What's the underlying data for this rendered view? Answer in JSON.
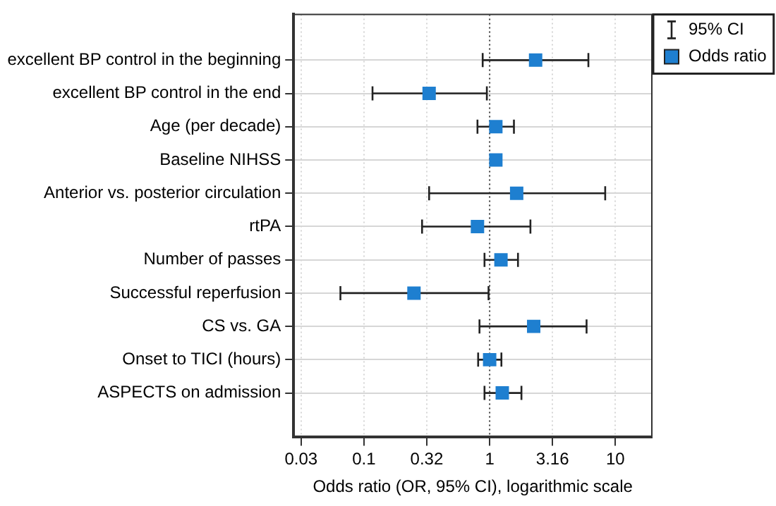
{
  "chart_data": {
    "type": "scatter",
    "orientation": "horizontal",
    "xlabel": "Odds ratio (OR, 95% CI), logarithmic scale",
    "annotations": [
      "95% CI"
    ],
    "categories": [
      "excellent BP control in the beginning",
      "excellent BP control in the end",
      "Age (per decade)",
      "Baseline NIHSS",
      "Anterior vs. posterior circulation",
      "rtPA",
      "Number of passes",
      "Successful reperfusion",
      "CS vs. GA",
      "Onset to TICI (hours)",
      "ASPECTS on admission"
    ],
    "series": [
      {
        "name": "Odds ratio",
        "color": "#1e7fd0",
        "values": [
          2.32,
          0.33,
          1.12,
          1.12,
          1.64,
          0.8,
          1.23,
          0.25,
          2.24,
          1.0,
          1.26
        ],
        "errors": [
          [
            0.88,
            6.1
          ],
          [
            0.117,
            0.95
          ],
          [
            0.8,
            1.56
          ],
          null,
          [
            0.33,
            8.3
          ],
          [
            0.29,
            2.11
          ],
          [
            0.91,
            1.68
          ],
          [
            0.065,
            0.98
          ],
          [
            0.83,
            5.9
          ],
          [
            0.81,
            1.24
          ],
          [
            0.91,
            1.79
          ]
        ]
      }
    ],
    "xlim": [
      0.0276,
      19.5
    ],
    "xticks": [
      {
        "value": 0.0316,
        "label": "0.03"
      },
      0.1,
      {
        "value": 0.316,
        "label": "0.32"
      },
      1,
      3.16,
      10
    ],
    "log": "x",
    "grid": true,
    "marker": "square",
    "legend": "top right",
    "ref_lines": [
      {
        "axis": "x",
        "value": 1,
        "line_style": "dotted"
      }
    ]
  }
}
